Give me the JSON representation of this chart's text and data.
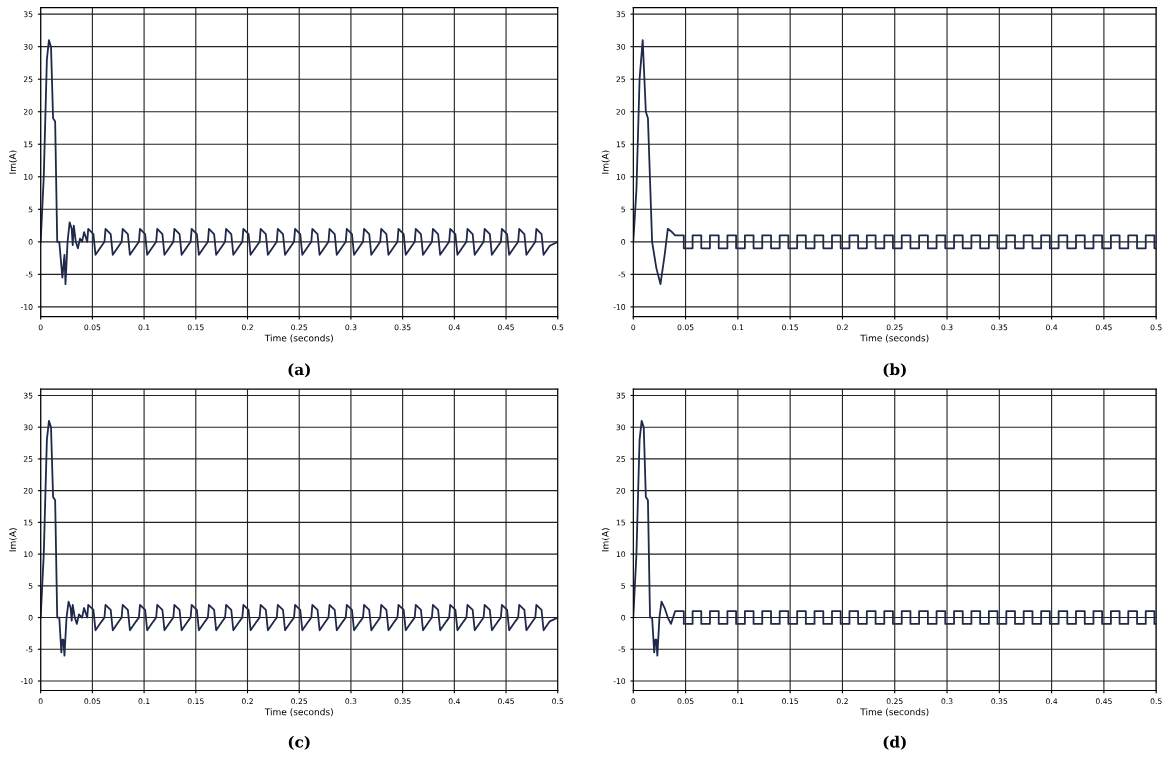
{
  "chart_data": [
    {
      "type": "line",
      "title": "(a)",
      "xlabel": "Time (seconds)",
      "ylabel": "Im(A)",
      "grid": true,
      "color": "#1f2a4a",
      "xlim": [
        0,
        0.5
      ],
      "ylim": [
        -11.5,
        36
      ],
      "xticks": [
        0,
        0.05,
        0.1,
        0.15,
        0.2,
        0.25,
        0.3,
        0.35,
        0.4,
        0.45,
        0.5
      ],
      "yticks": [
        -10,
        -5,
        0,
        5,
        10,
        15,
        20,
        25,
        30,
        35
      ],
      "series": [
        {
          "x": [
            0,
            0.003,
            0.006,
            0.008,
            0.01,
            0.012,
            0.014,
            0.016,
            0.018,
            0.021,
            0.023,
            0.024,
            0.026,
            0.028,
            0.03,
            0.031,
            0.032,
            0.034,
            0.036,
            0.038,
            0.04,
            0.042,
            0.045,
            0.046,
            0.051,
            0.053,
            0.059,
            0.0617,
            0.0627,
            0.0677,
            0.0697,
            0.0757,
            0.0783,
            0.0793,
            0.0843,
            0.0863,
            0.0923,
            0.095,
            0.096,
            0.101,
            0.103,
            0.109,
            0.1117,
            0.1127,
            0.1177,
            0.1197,
            0.1257,
            0.1283,
            0.1293,
            0.1343,
            0.1363,
            0.1423,
            0.145,
            0.146,
            0.151,
            0.153,
            0.159,
            0.1617,
            0.1627,
            0.1677,
            0.1697,
            0.1757,
            0.1783,
            0.1793,
            0.1843,
            0.1863,
            0.1923,
            0.195,
            0.196,
            0.201,
            0.203,
            0.209,
            0.2117,
            0.2127,
            0.2177,
            0.2197,
            0.2257,
            0.2283,
            0.2293,
            0.2343,
            0.2363,
            0.2423,
            0.245,
            0.246,
            0.251,
            0.253,
            0.259,
            0.2617,
            0.2627,
            0.2677,
            0.2697,
            0.2757,
            0.2783,
            0.2793,
            0.2843,
            0.2863,
            0.2923,
            0.295,
            0.296,
            0.301,
            0.303,
            0.309,
            0.3117,
            0.3127,
            0.3177,
            0.3197,
            0.3257,
            0.3283,
            0.3293,
            0.3343,
            0.3363,
            0.3423,
            0.345,
            0.346,
            0.351,
            0.353,
            0.359,
            0.3617,
            0.3627,
            0.3677,
            0.3697,
            0.3757,
            0.3783,
            0.3793,
            0.3843,
            0.3863,
            0.3923,
            0.395,
            0.396,
            0.401,
            0.403,
            0.409,
            0.4117,
            0.4127,
            0.4177,
            0.4197,
            0.4257,
            0.4283,
            0.4293,
            0.4343,
            0.4363,
            0.4423,
            0.445,
            0.446,
            0.451,
            0.453,
            0.459,
            0.4617,
            0.4627,
            0.4677,
            0.4697,
            0.4757,
            0.4783,
            0.4793,
            0.4843,
            0.4863,
            0.4923,
            0.5
          ],
          "values": [
            0,
            10,
            28,
            31,
            30,
            19,
            18.5,
            0,
            0,
            -5.5,
            -2,
            -6.5,
            0,
            3,
            2,
            -0.5,
            2.5,
            0,
            -1,
            0.5,
            0,
            1.5,
            0,
            2,
            1.2,
            -2,
            -0.6,
            0,
            2,
            1.2,
            -2,
            -0.6,
            0,
            2,
            1.2,
            -2,
            -0.6,
            0,
            2,
            1.2,
            -2,
            -0.6,
            0,
            2,
            1.2,
            -2,
            -0.6,
            0,
            2,
            1.2,
            -2,
            -0.6,
            0,
            2,
            1.2,
            -2,
            -0.6,
            0,
            2,
            1.2,
            -2,
            -0.6,
            0,
            2,
            1.2,
            -2,
            -0.6,
            0,
            2,
            1.2,
            -2,
            -0.6,
            0,
            2,
            1.2,
            -2,
            -0.6,
            0,
            2,
            1.2,
            -2,
            -0.6,
            0,
            2,
            1.2,
            -2,
            -0.6,
            0,
            2,
            1.2,
            -2,
            -0.6,
            0,
            2,
            1.2,
            -2,
            -0.6,
            0,
            2,
            1.2,
            -2,
            -0.6,
            0,
            2,
            1.2,
            -2,
            -0.6,
            0,
            2,
            1.2,
            -2,
            -0.6,
            0,
            2,
            1.2,
            -2,
            -0.6,
            0,
            2,
            1.2,
            -2,
            -0.6,
            0,
            2,
            1.2,
            -2,
            -0.6,
            0,
            2,
            1.2,
            -2,
            -0.6,
            0,
            2,
            1.2,
            -2,
            -0.6,
            0,
            2,
            1.2,
            -2,
            -0.6,
            0,
            2,
            1.2,
            -2,
            -0.6,
            0,
            2,
            1.2,
            -2,
            -0.6,
            0,
            2,
            1.2,
            -2,
            -0.6,
            0
          ]
        }
      ]
    },
    {
      "type": "line",
      "title": "(b)",
      "xlabel": "Time (seconds)",
      "ylabel": "Im(A)",
      "grid": true,
      "color": "#1f2a4a",
      "xlim": [
        0,
        0.5
      ],
      "ylim": [
        -11.5,
        36
      ],
      "xticks": [
        0,
        0.05,
        0.1,
        0.15,
        0.2,
        0.25,
        0.3,
        0.35,
        0.4,
        0.45,
        0.5
      ],
      "yticks": [
        -10,
        -5,
        0,
        5,
        10,
        15,
        20,
        25,
        30,
        35
      ],
      "series": [
        {
          "x": [
            0,
            0.003,
            0.006,
            0.009,
            0.012,
            0.014,
            0.018,
            0.022,
            0.026,
            0.03,
            0.033,
            0.037,
            0.04,
            0.0483,
            0.0483,
            0.0567,
            0.0567,
            0.065,
            0.065,
            0.0733,
            0.0733,
            0.0817,
            0.0817,
            0.09,
            0.09,
            0.0983,
            0.0983,
            0.1067,
            0.1067,
            0.115,
            0.115,
            0.1233,
            0.1233,
            0.1317,
            0.1317,
            0.14,
            0.14,
            0.1483,
            0.1483,
            0.1567,
            0.1567,
            0.165,
            0.165,
            0.1733,
            0.1733,
            0.1817,
            0.1817,
            0.19,
            0.19,
            0.1983,
            0.1983,
            0.2067,
            0.2067,
            0.215,
            0.215,
            0.2233,
            0.2233,
            0.2317,
            0.2317,
            0.24,
            0.24,
            0.2483,
            0.2483,
            0.2567,
            0.2567,
            0.265,
            0.265,
            0.2733,
            0.2733,
            0.2817,
            0.2817,
            0.29,
            0.29,
            0.2983,
            0.2983,
            0.3067,
            0.3067,
            0.315,
            0.315,
            0.3233,
            0.3233,
            0.3317,
            0.3317,
            0.34,
            0.34,
            0.3483,
            0.3483,
            0.3567,
            0.3567,
            0.365,
            0.365,
            0.3733,
            0.3733,
            0.3817,
            0.3817,
            0.39,
            0.39,
            0.3983,
            0.3983,
            0.4067,
            0.4067,
            0.415,
            0.415,
            0.4233,
            0.4233,
            0.4317,
            0.4317,
            0.44,
            0.44,
            0.4483,
            0.4483,
            0.4567,
            0.4567,
            0.465,
            0.465,
            0.4733,
            0.4733,
            0.4817,
            0.4817,
            0.49,
            0.49,
            0.4983,
            0.4983,
            0.5
          ],
          "values": [
            0,
            8,
            25,
            31,
            20,
            19,
            0,
            -4,
            -6.5,
            -2,
            2,
            1.5,
            1,
            1,
            -1,
            -1,
            1,
            1,
            -1,
            -1,
            1,
            1,
            -1,
            -1,
            1,
            1,
            -1,
            -1,
            1,
            1,
            -1,
            -1,
            1,
            1,
            -1,
            -1,
            1,
            1,
            -1,
            -1,
            1,
            1,
            -1,
            -1,
            1,
            1,
            -1,
            -1,
            1,
            1,
            -1,
            -1,
            1,
            1,
            -1,
            -1,
            1,
            1,
            -1,
            -1,
            1,
            1,
            -1,
            -1,
            1,
            1,
            -1,
            -1,
            1,
            1,
            -1,
            -1,
            1,
            1,
            -1,
            -1,
            1,
            1,
            -1,
            -1,
            1,
            1,
            -1,
            -1,
            1,
            1,
            -1,
            -1,
            1,
            1,
            -1,
            -1,
            1,
            1,
            -1,
            -1,
            1,
            1,
            -1,
            -1,
            1,
            1,
            -1,
            -1,
            1,
            1,
            -1,
            -1,
            1,
            1,
            -1,
            -1,
            1,
            1,
            -1,
            -1,
            1,
            1,
            -1,
            -1,
            1,
            1,
            -1,
            -1
          ]
        }
      ]
    },
    {
      "type": "line",
      "title": "(c)",
      "xlabel": "Time (seconds)",
      "ylabel": "Im(A)",
      "grid": true,
      "color": "#1f2a4a",
      "xlim": [
        0,
        0.5
      ],
      "ylim": [
        -11.5,
        36
      ],
      "xticks": [
        0,
        0.05,
        0.1,
        0.15,
        0.2,
        0.25,
        0.3,
        0.35,
        0.4,
        0.45,
        0.5
      ],
      "yticks": [
        -10,
        -5,
        0,
        5,
        10,
        15,
        20,
        25,
        30,
        35
      ],
      "series": [
        {
          "x": [
            0,
            0.003,
            0.006,
            0.008,
            0.01,
            0.012,
            0.014,
            0.016,
            0.018,
            0.02,
            0.021,
            0.022,
            0.023,
            0.025,
            0.027,
            0.029,
            0.03,
            0.031,
            0.033,
            0.035,
            0.037,
            0.04,
            0.042,
            0.045,
            0.046,
            0.051,
            0.053,
            0.059,
            0.0617,
            0.0627,
            0.0677,
            0.0697,
            0.0757,
            0.0783,
            0.0793,
            0.0843,
            0.0863,
            0.0923,
            0.095,
            0.096,
            0.101,
            0.103,
            0.109,
            0.1117,
            0.1127,
            0.1177,
            0.1197,
            0.1257,
            0.1283,
            0.1293,
            0.1343,
            0.1363,
            0.1423,
            0.145,
            0.146,
            0.151,
            0.153,
            0.159,
            0.1617,
            0.1627,
            0.1677,
            0.1697,
            0.1757,
            0.1783,
            0.1793,
            0.1843,
            0.1863,
            0.1923,
            0.195,
            0.196,
            0.201,
            0.203,
            0.209,
            0.2117,
            0.2127,
            0.2177,
            0.2197,
            0.2257,
            0.2283,
            0.2293,
            0.2343,
            0.2363,
            0.2423,
            0.245,
            0.246,
            0.251,
            0.253,
            0.259,
            0.2617,
            0.2627,
            0.2677,
            0.2697,
            0.2757,
            0.2783,
            0.2793,
            0.2843,
            0.2863,
            0.2923,
            0.295,
            0.296,
            0.301,
            0.303,
            0.309,
            0.3117,
            0.3127,
            0.3177,
            0.3197,
            0.3257,
            0.3283,
            0.3293,
            0.3343,
            0.3363,
            0.3423,
            0.345,
            0.346,
            0.351,
            0.353,
            0.359,
            0.3617,
            0.3627,
            0.3677,
            0.3697,
            0.3757,
            0.3783,
            0.3793,
            0.3843,
            0.3863,
            0.3923,
            0.395,
            0.396,
            0.401,
            0.403,
            0.409,
            0.4117,
            0.4127,
            0.4177,
            0.4197,
            0.4257,
            0.4283,
            0.4293,
            0.4343,
            0.4363,
            0.4423,
            0.445,
            0.446,
            0.451,
            0.453,
            0.459,
            0.4617,
            0.4627,
            0.4677,
            0.4697,
            0.4757,
            0.4783,
            0.4793,
            0.4843,
            0.4863,
            0.4923,
            0.5
          ],
          "values": [
            0,
            10,
            28,
            31,
            30,
            19,
            18.5,
            0,
            0,
            -5.5,
            -3.5,
            -3.5,
            -6,
            0,
            2.5,
            1.5,
            -0.5,
            2,
            0,
            -1,
            0.5,
            0,
            1.5,
            0,
            2,
            1.2,
            -2,
            -0.6,
            0,
            2,
            1.2,
            -2,
            -0.6,
            0,
            2,
            1.2,
            -2,
            -0.6,
            0,
            2,
            1.2,
            -2,
            -0.6,
            0,
            2,
            1.2,
            -2,
            -0.6,
            0,
            2,
            1.2,
            -2,
            -0.6,
            0,
            2,
            1.2,
            -2,
            -0.6,
            0,
            2,
            1.2,
            -2,
            -0.6,
            0,
            2,
            1.2,
            -2,
            -0.6,
            0,
            2,
            1.2,
            -2,
            -0.6,
            0,
            2,
            1.2,
            -2,
            -0.6,
            0,
            2,
            1.2,
            -2,
            -0.6,
            0,
            2,
            1.2,
            -2,
            -0.6,
            0,
            2,
            1.2,
            -2,
            -0.6,
            0,
            2,
            1.2,
            -2,
            -0.6,
            0,
            2,
            1.2,
            -2,
            -0.6,
            0,
            2,
            1.2,
            -2,
            -0.6,
            0,
            2,
            1.2,
            -2,
            -0.6,
            0,
            2,
            1.2,
            -2,
            -0.6,
            0,
            2,
            1.2,
            -2,
            -0.6,
            0,
            2,
            1.2,
            -2,
            -0.6,
            0,
            2,
            1.2,
            -2,
            -0.6,
            0,
            2,
            1.2,
            -2,
            -0.6,
            0,
            2,
            1.2,
            -2,
            -0.6,
            0,
            2,
            1.2,
            -2,
            -0.6,
            0,
            2,
            1.2,
            -2,
            -0.6,
            0,
            2,
            1.2,
            -2,
            -0.6,
            0
          ]
        }
      ]
    },
    {
      "type": "line",
      "title": "(d)",
      "xlabel": "Time (seconds)",
      "ylabel": "Im(A)",
      "grid": true,
      "color": "#1f2a4a",
      "xlim": [
        0,
        0.5
      ],
      "ylim": [
        -11.5,
        36
      ],
      "xticks": [
        0,
        0.05,
        0.1,
        0.15,
        0.2,
        0.25,
        0.3,
        0.35,
        0.4,
        0.45,
        0.5
      ],
      "yticks": [
        -10,
        -5,
        0,
        5,
        10,
        15,
        20,
        25,
        30,
        35
      ],
      "series": [
        {
          "x": [
            0,
            0.003,
            0.006,
            0.008,
            0.01,
            0.012,
            0.014,
            0.016,
            0.018,
            0.02,
            0.021,
            0.022,
            0.023,
            0.025,
            0.027,
            0.03,
            0.033,
            0.036,
            0.04,
            0.0483,
            0.0483,
            0.0567,
            0.0567,
            0.065,
            0.065,
            0.0733,
            0.0733,
            0.0817,
            0.0817,
            0.09,
            0.09,
            0.0983,
            0.0983,
            0.1067,
            0.1067,
            0.115,
            0.115,
            0.1233,
            0.1233,
            0.1317,
            0.1317,
            0.14,
            0.14,
            0.1483,
            0.1483,
            0.1567,
            0.1567,
            0.165,
            0.165,
            0.1733,
            0.1733,
            0.1817,
            0.1817,
            0.19,
            0.19,
            0.1983,
            0.1983,
            0.2067,
            0.2067,
            0.215,
            0.215,
            0.2233,
            0.2233,
            0.2317,
            0.2317,
            0.24,
            0.24,
            0.2483,
            0.2483,
            0.2567,
            0.2567,
            0.265,
            0.265,
            0.2733,
            0.2733,
            0.2817,
            0.2817,
            0.29,
            0.29,
            0.2983,
            0.2983,
            0.3067,
            0.3067,
            0.315,
            0.315,
            0.3233,
            0.3233,
            0.3317,
            0.3317,
            0.34,
            0.34,
            0.3483,
            0.3483,
            0.3567,
            0.3567,
            0.365,
            0.365,
            0.3733,
            0.3733,
            0.3817,
            0.3817,
            0.39,
            0.39,
            0.3983,
            0.3983,
            0.4067,
            0.4067,
            0.415,
            0.415,
            0.4233,
            0.4233,
            0.4317,
            0.4317,
            0.44,
            0.44,
            0.4483,
            0.4483,
            0.4567,
            0.4567,
            0.465,
            0.465,
            0.4733,
            0.4733,
            0.4817,
            0.4817,
            0.49,
            0.49,
            0.4983,
            0.4983,
            0.5
          ],
          "values": [
            0,
            10,
            28,
            31,
            30,
            19,
            18.5,
            0,
            0,
            -5.5,
            -3.5,
            -3.5,
            -6,
            0,
            2.5,
            1.5,
            0,
            -1,
            1,
            1,
            -1,
            -1,
            1,
            1,
            -1,
            -1,
            1,
            1,
            -1,
            -1,
            1,
            1,
            -1,
            -1,
            1,
            1,
            -1,
            -1,
            1,
            1,
            -1,
            -1,
            1,
            1,
            -1,
            -1,
            1,
            1,
            -1,
            -1,
            1,
            1,
            -1,
            -1,
            1,
            1,
            -1,
            -1,
            1,
            1,
            -1,
            -1,
            1,
            1,
            -1,
            -1,
            1,
            1,
            -1,
            -1,
            1,
            1,
            -1,
            -1,
            1,
            1,
            -1,
            -1,
            1,
            1,
            -1,
            -1,
            1,
            1,
            -1,
            -1,
            1,
            1,
            -1,
            -1,
            1,
            1,
            -1,
            -1,
            1,
            1,
            -1,
            -1,
            1,
            1,
            -1,
            -1,
            1,
            1,
            -1,
            -1,
            1,
            1,
            -1,
            -1,
            1,
            1,
            -1,
            -1,
            1,
            1,
            -1,
            -1,
            1,
            1,
            -1,
            -1,
            1,
            1,
            -1,
            -1,
            1,
            1,
            -1,
            -1
          ]
        }
      ]
    }
  ]
}
